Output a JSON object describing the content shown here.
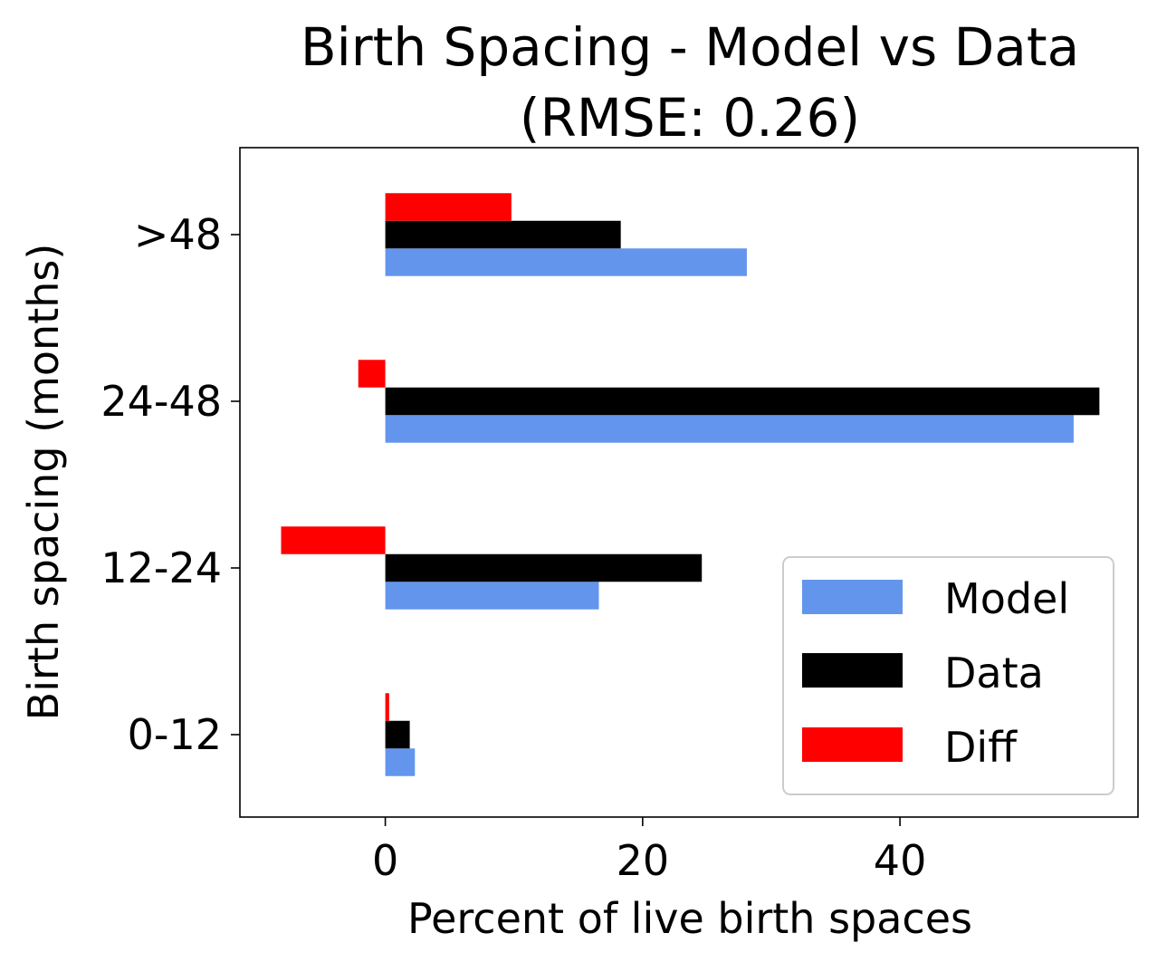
{
  "chart_data": {
    "type": "bar",
    "orientation": "horizontal",
    "title": "Birth Spacing - Model vs Data",
    "subtitle": "(RMSE: 0.26)",
    "xlabel": "Percent of live birth spaces",
    "ylabel": "Birth spacing (months)",
    "categories": [
      "0-12",
      "12-24",
      "24-48",
      ">48"
    ],
    "xlim": [
      -11.3,
      58.5
    ],
    "xticks": [
      0,
      20,
      40
    ],
    "xtick_labels": [
      "0",
      "20",
      "40"
    ],
    "series": [
      {
        "name": "Model",
        "color": "#6495ED",
        "values": [
          2.3,
          16.6,
          53.5,
          28.1
        ]
      },
      {
        "name": "Data",
        "color": "#000000",
        "values": [
          1.9,
          24.6,
          55.5,
          18.3
        ]
      },
      {
        "name": "Diff",
        "color": "#FF0000",
        "values": [
          0.3,
          -8.1,
          -2.1,
          9.8
        ]
      }
    ],
    "legend_position": "lower right",
    "grid": false
  }
}
